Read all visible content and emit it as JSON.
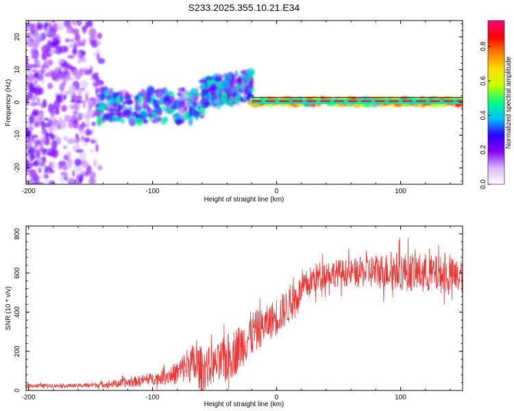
{
  "chart_data": [
    {
      "type": "heatmap",
      "title": "S233.2025.355.10.21.E34",
      "xlabel": "Height of straight line (km)",
      "ylabel": "Frequency (Hz)",
      "xlim": [
        -202,
        150
      ],
      "ylim": [
        -25,
        25
      ],
      "x_ticks": [
        -200,
        -100,
        0,
        100
      ],
      "x_tick_labels": [
        "-200",
        "-100",
        "0",
        "100"
      ],
      "y_ticks": [
        -20,
        -10,
        0,
        10,
        20
      ],
      "y_tick_labels": [
        "-20",
        "-10",
        "0",
        "10",
        "20"
      ],
      "colorbar": {
        "label": "Normalized spectral amplitude",
        "range": [
          0,
          0.95
        ],
        "ticks": [
          0,
          0.2,
          0.4,
          0.6,
          0.8
        ],
        "tick_labels": [
          "0.0",
          "0.2",
          "0.4",
          "0.6",
          "0.8"
        ],
        "colormap": [
          "#ffffff",
          "#d8b8f8",
          "#8800ff",
          "#2a00ff",
          "#00c0ff",
          "#00ff80",
          "#c0ff00",
          "#ffe000",
          "#ff8000",
          "#ff0000",
          "#ff0080"
        ]
      },
      "features": [
        {
          "name": "scattered-noise",
          "x_range": [
            -202,
            -140
          ],
          "y_range": [
            -25,
            25
          ],
          "amplitude": 0.1
        },
        {
          "name": "onset-band",
          "x_range": [
            -145,
            -60
          ],
          "y_range": [
            -6,
            4
          ],
          "amplitude": 0.3
        },
        {
          "name": "rising-band",
          "x_range": [
            -60,
            -20
          ],
          "y_range": [
            -2,
            7
          ],
          "amplitude": 0.3
        },
        {
          "name": "stable-band",
          "x_range": [
            -20,
            150
          ],
          "y_range": [
            -0.8,
            1.2
          ],
          "amplitude": 0.7
        }
      ]
    },
    {
      "type": "line",
      "xlabel": "Height of straight line (km)",
      "ylabel": "SNR (10 * v/v)",
      "xlim": [
        -202,
        150
      ],
      "ylim": [
        0,
        840
      ],
      "x_ticks": [
        -200,
        -100,
        0,
        100
      ],
      "x_tick_labels": [
        "-200",
        "-100",
        "0",
        "100"
      ],
      "y_ticks": [
        0,
        200,
        400,
        600,
        800
      ],
      "y_tick_labels": [
        "0",
        "200",
        "400",
        "600",
        "800"
      ],
      "series": [
        {
          "name": "SNR",
          "color": "#ee3333",
          "x": [
            -202,
            -180,
            -160,
            -140,
            -120,
            -100,
            -90,
            -80,
            -70,
            -60,
            -50,
            -40,
            -30,
            -20,
            -10,
            0,
            10,
            20,
            30,
            40,
            60,
            80,
            100,
            120,
            150
          ],
          "mean": [
            25,
            25,
            25,
            30,
            40,
            60,
            70,
            90,
            140,
            110,
            130,
            160,
            220,
            290,
            330,
            380,
            430,
            510,
            570,
            600,
            600,
            610,
            610,
            600,
            580
          ],
          "amp": [
            10,
            10,
            10,
            15,
            25,
            30,
            40,
            60,
            100,
            120,
            90,
            130,
            120,
            120,
            90,
            100,
            90,
            80,
            80,
            70,
            70,
            90,
            100,
            100,
            90
          ]
        }
      ]
    }
  ]
}
